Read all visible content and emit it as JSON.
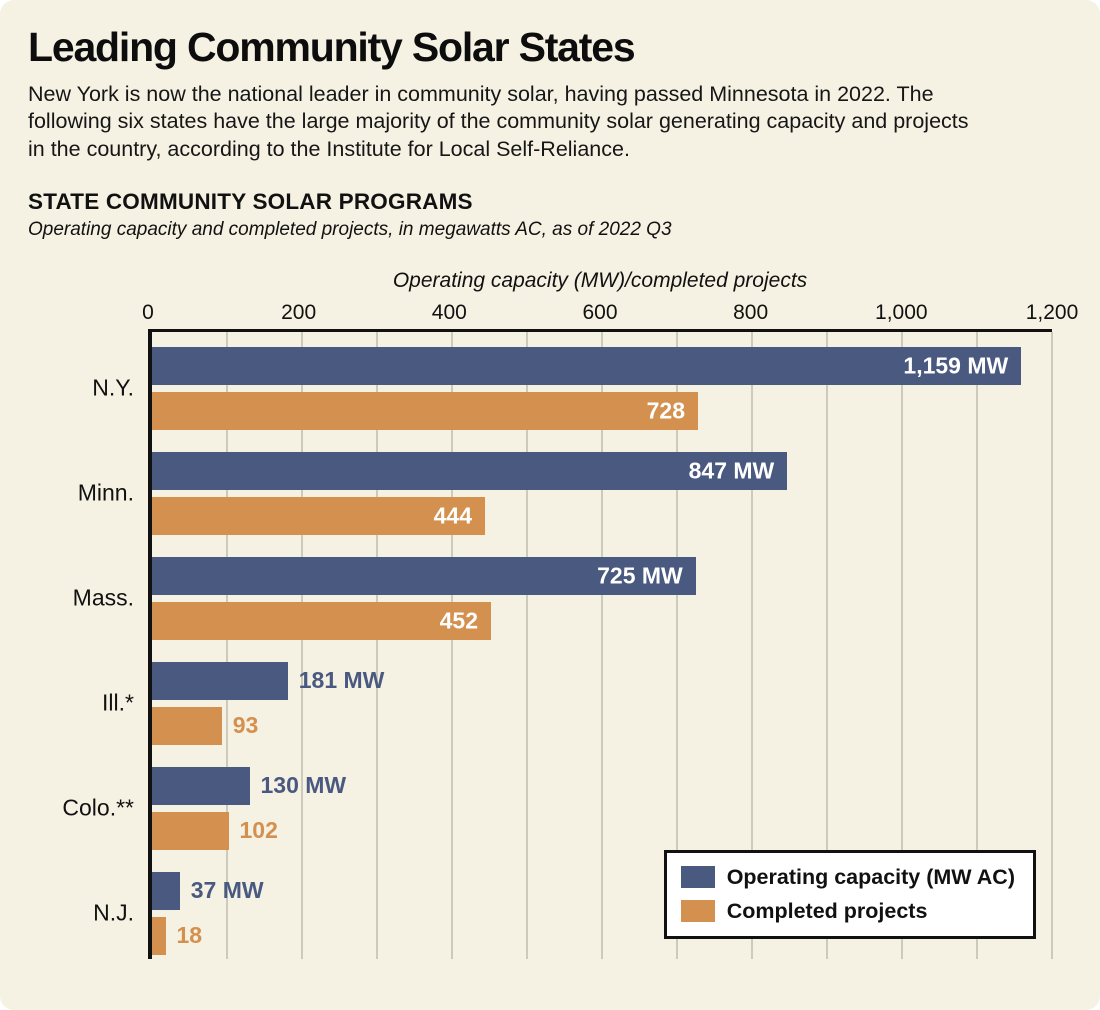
{
  "header": {
    "title": "Leading Community Solar States",
    "description": "New York is now the national leader in community solar, having passed Minnesota in 2022. The following six states have the large majority of the community solar generating capacity and projects in the country, according to the Institute for Local Self-Reliance."
  },
  "chart_data": {
    "type": "bar",
    "orientation": "horizontal",
    "title": "STATE COMMUNITY SOLAR PROGRAMS",
    "subtitle": "Operating capacity and completed projects, in megawatts AC, as of 2022 Q3",
    "axis_title": "Operating capacity (MW)/completed projects",
    "categories": [
      "N.Y.",
      "Minn.",
      "Mass.",
      "Ill.*",
      "Colo.**",
      "N.J."
    ],
    "series": [
      {
        "name": "Operating capacity (MW AC)",
        "color": "#4a5980",
        "values": [
          1159,
          847,
          725,
          181,
          130,
          37
        ],
        "labels": [
          "1,159 MW",
          "847 MW",
          "725 MW",
          "181 MW",
          "130 MW",
          "37 MW"
        ]
      },
      {
        "name": "Completed projects",
        "color": "#d4904f",
        "values": [
          728,
          444,
          452,
          93,
          102,
          18
        ],
        "labels": [
          "728",
          "444",
          "452",
          "93",
          "102",
          "18"
        ]
      }
    ],
    "xlim": [
      0,
      1200
    ],
    "xticks": [
      "0",
      "200",
      "400",
      "600",
      "800",
      "1,000",
      "1,200"
    ],
    "xtick_step": 200,
    "grid": true,
    "grid_step": 100,
    "label_inside_min": 300,
    "legend_position": "bottom-right",
    "background_color": "#f5f1e3"
  }
}
